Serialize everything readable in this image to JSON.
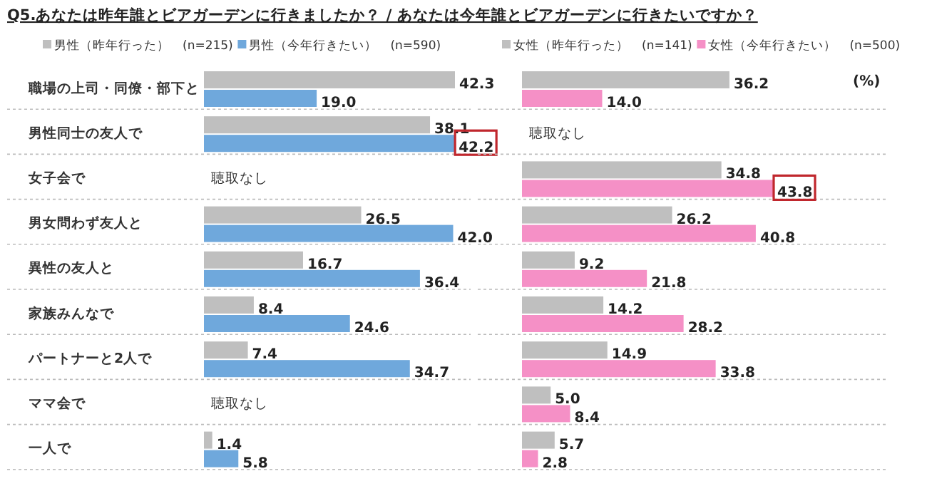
{
  "chart_data": [
    {
      "type": "bar",
      "orientation": "horizontal",
      "title": "Q5.あなたは昨年誰とビアガーデンに行きましたか？ / あなたは今年誰とビアガーデンに行きたいですか？",
      "categories": [
        "職場の上司・同僚・部下と",
        "男性同士の友人で",
        "女子会で",
        "男女問わず友人と",
        "異性の友人と",
        "家族みんなで",
        "パートナーと2人で",
        "ママ会で",
        "一人で"
      ],
      "series": [
        {
          "name": "男性（昨年行った）　(n=215)",
          "color": "#bfbfbf",
          "values": [
            42.3,
            38.1,
            null,
            26.5,
            16.7,
            8.4,
            7.4,
            null,
            1.4
          ],
          "value_labels": [
            "42.3",
            "38.1",
            null,
            "26.5",
            "16.7",
            "8.4",
            "7.4",
            null,
            "1.4"
          ]
        },
        {
          "name": "男性（今年行きたい）　(n=590)",
          "color": "#6fa8dc",
          "values": [
            19.0,
            42.2,
            null,
            42.0,
            36.4,
            24.6,
            34.7,
            null,
            5.8
          ],
          "value_labels": [
            "19.0",
            "42.2",
            null,
            "42.0",
            "36.4",
            "24.6",
            "34.7",
            null,
            "5.8"
          ]
        }
      ],
      "annotations": [
        "聴取なし",
        "聴取なし"
      ],
      "legend": "top",
      "tick_labels": "y"
    },
    {
      "type": "bar",
      "orientation": "horizontal",
      "categories": [
        null,
        null,
        null,
        null,
        null,
        null,
        null,
        null,
        null
      ],
      "series": [
        {
          "name": "女性（昨年行った）　(n=141)",
          "color": "#bfbfbf",
          "values": [
            36.2,
            null,
            34.8,
            26.2,
            9.2,
            14.2,
            14.9,
            5.0,
            5.7
          ],
          "value_labels": [
            "36.2",
            null,
            "34.8",
            "26.2",
            "9.2",
            "14.2",
            "14.9",
            "5.0",
            "5.7"
          ]
        },
        {
          "name": "女性（今年行きたい）　(n=500)",
          "color": "#f590c6",
          "values": [
            14.0,
            null,
            43.8,
            40.8,
            21.8,
            28.2,
            33.8,
            8.4,
            2.8
          ],
          "value_labels": [
            "14.0",
            null,
            "43.8",
            "40.8",
            "21.8",
            "28.2",
            "33.8",
            "8.4",
            "2.8"
          ]
        }
      ],
      "annotations": [
        "(%)",
        "聴取なし"
      ],
      "legend": "top"
    }
  ]
}
